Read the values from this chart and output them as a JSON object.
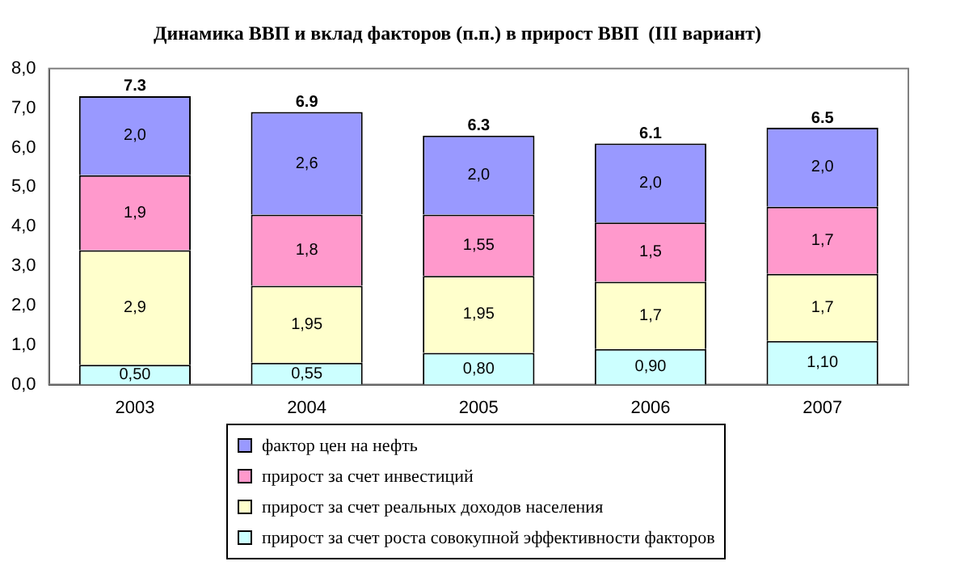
{
  "chart_data": {
    "type": "bar",
    "title": "Динамика ВВП и вклад факторов (п.п.) в прирост ВВП  (III вариант)",
    "stacked": true,
    "categories": [
      "2003",
      "2004",
      "2005",
      "2006",
      "2007"
    ],
    "series": [
      {
        "name": "прирост за счет роста совокупной эффективности факторов",
        "color": "#ccffff",
        "values": [
          0.5,
          0.55,
          0.8,
          0.9,
          1.1
        ],
        "value_labels": [
          "0,50",
          "0,55",
          "0,80",
          "0,90",
          "1,10"
        ]
      },
      {
        "name": "прирост за счет реальных доходов населения",
        "color": "#ffffcc",
        "values": [
          2.9,
          1.95,
          1.95,
          1.7,
          1.7
        ],
        "value_labels": [
          "2,9",
          "1,95",
          "1,95",
          "1,7",
          "1,7"
        ]
      },
      {
        "name": "прирост за счет инвестиций",
        "color": "#ff99cc",
        "values": [
          1.9,
          1.8,
          1.55,
          1.5,
          1.7
        ],
        "value_labels": [
          "1,9",
          "1,8",
          "1,55",
          "1,5",
          "1,7"
        ]
      },
      {
        "name": "фактор цен на нефть",
        "color": "#9999ff",
        "values": [
          2.0,
          2.6,
          2.0,
          2.0,
          2.0
        ],
        "value_labels": [
          "2,0",
          "2,6",
          "2,0",
          "2,0",
          "2,0"
        ]
      }
    ],
    "totals": [
      "7.3",
      "6.9",
      "6.3",
      "6.1",
      "6.5"
    ],
    "ylim": [
      0,
      8
    ],
    "yticks": [
      {
        "value": 0,
        "label": "0,0"
      },
      {
        "value": 1,
        "label": "1,0"
      },
      {
        "value": 2,
        "label": "2,0"
      },
      {
        "value": 3,
        "label": "3,0"
      },
      {
        "value": 4,
        "label": "4,0"
      },
      {
        "value": 5,
        "label": "5,0"
      },
      {
        "value": 6,
        "label": "6,0"
      },
      {
        "value": 7,
        "label": "7,0"
      },
      {
        "value": 8,
        "label": "8,0"
      }
    ],
    "grid": false,
    "legend": "bottom"
  }
}
